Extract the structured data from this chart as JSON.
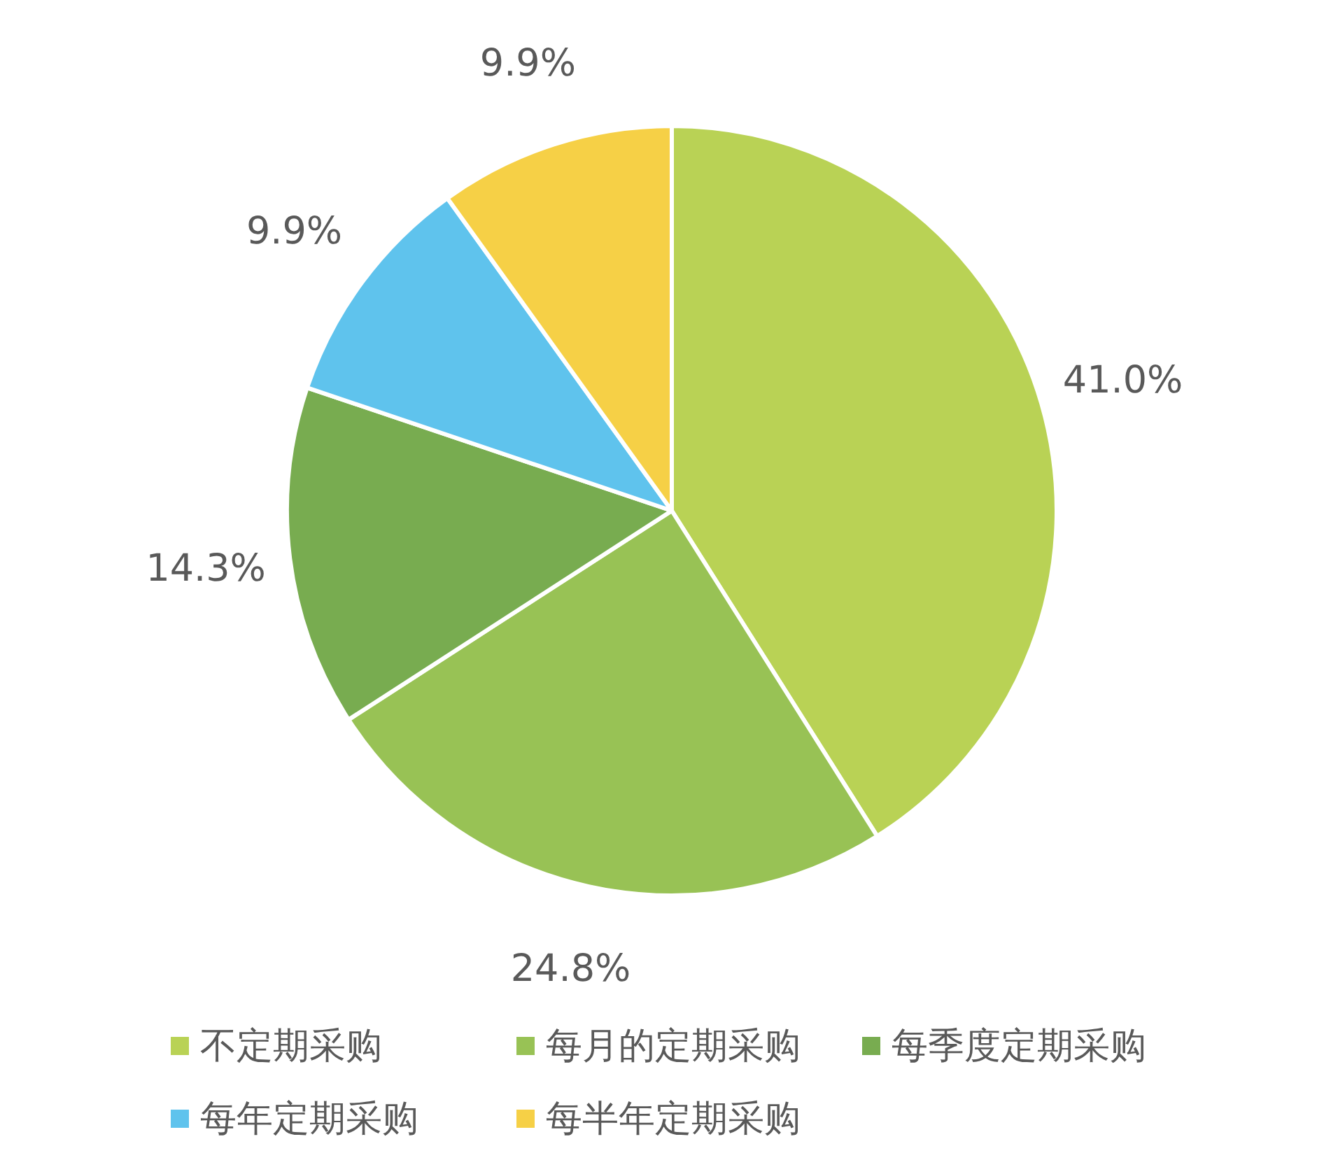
{
  "chart_data": {
    "type": "pie",
    "categories": [
      "不定期采购",
      "每月的定期采购",
      "每季度定期采购",
      "每年定期采购",
      "每半年定期采购"
    ],
    "values": [
      41.0,
      24.8,
      14.3,
      9.9,
      9.9
    ],
    "value_labels": [
      "41.0%",
      "24.8%",
      "14.3%",
      "9.9%",
      "9.9%"
    ],
    "colors": [
      "#b9d255",
      "#98c255",
      "#78ac50",
      "#5fc3ed",
      "#f6d046"
    ],
    "legend": "bottom"
  }
}
